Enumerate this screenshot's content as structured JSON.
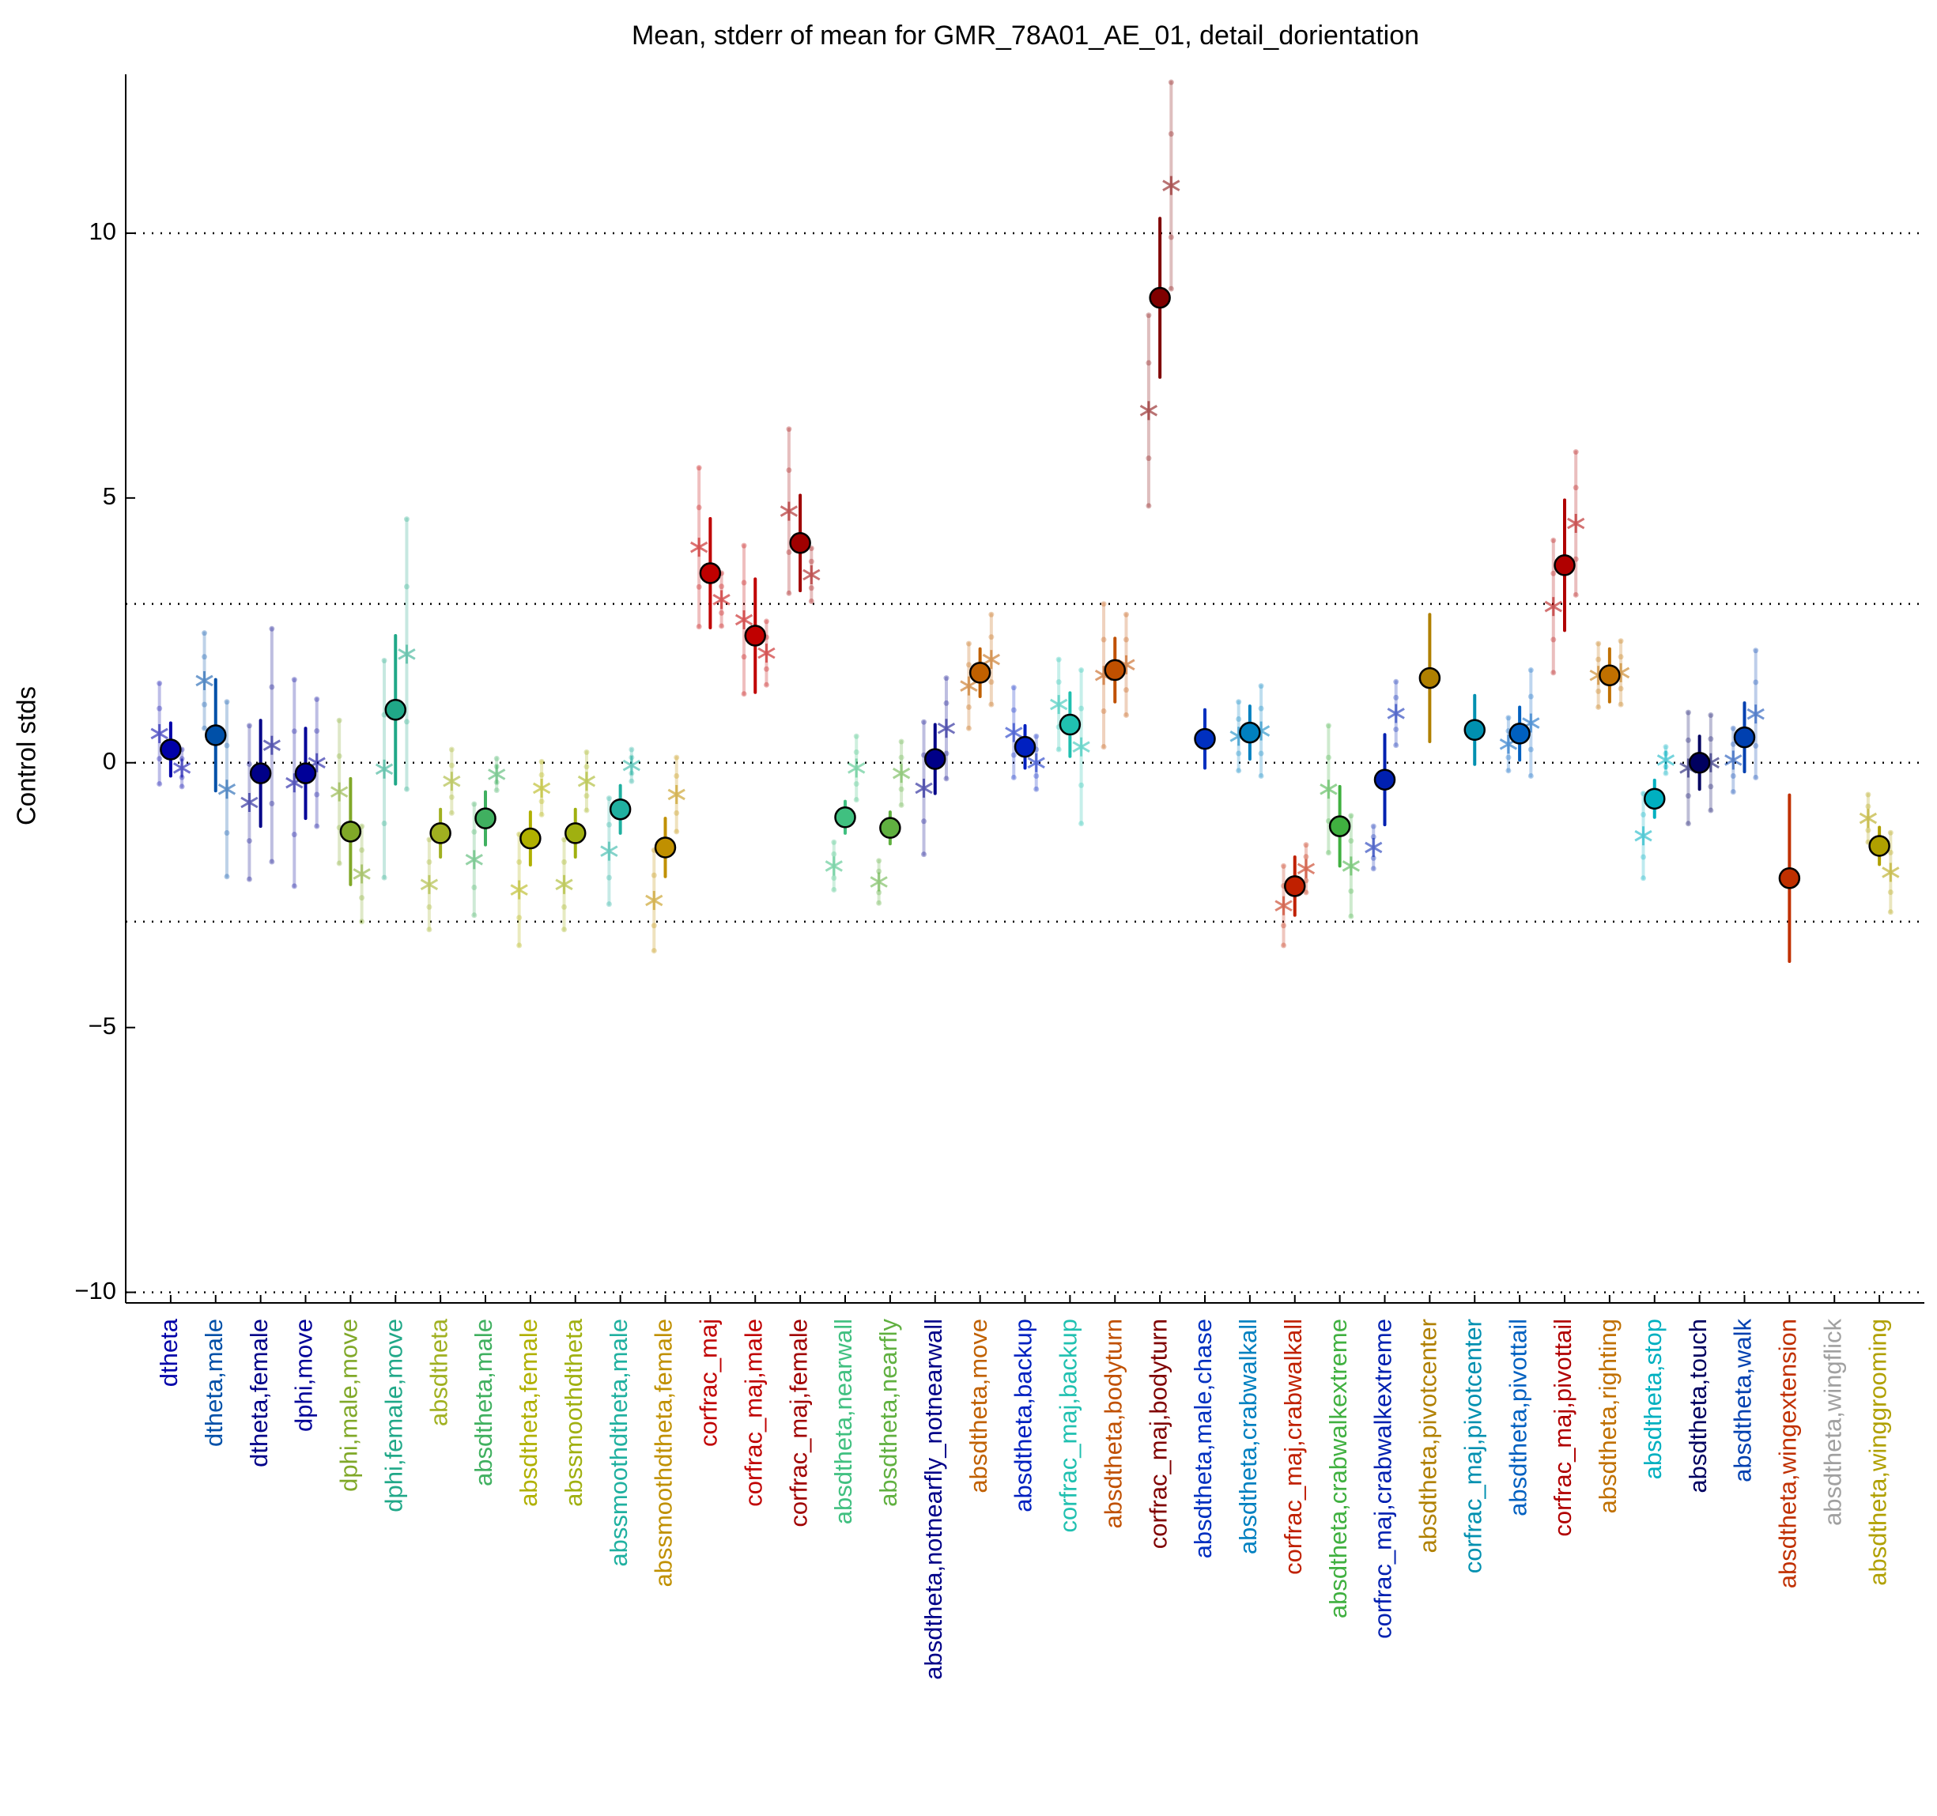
{
  "chart_data": {
    "type": "errorbar",
    "title": "Mean, stderr of mean for GMR_78A01_AE_01, detail_dorientation",
    "ylabel": "Control stds",
    "categories": [
      "dtheta",
      "dtheta,male",
      "dtheta,female",
      "dphi,move",
      "dphi,male,move",
      "dphi,female,move",
      "absdtheta",
      "absdtheta,male",
      "absdtheta,female",
      "abssmoothdtheta",
      "abssmoothdtheta,male",
      "abssmoothdtheta,female",
      "corfrac_maj",
      "corfrac_maj,male",
      "corfrac_maj,female",
      "absdtheta,nearwall",
      "absdtheta,nearfly",
      "absdtheta,notnearfly_notnearwall",
      "absdtheta,move",
      "absdtheta,backup",
      "corfrac_maj,backup",
      "absdtheta,bodyturn",
      "corfrac_maj,bodyturn",
      "absdtheta,male,chase",
      "absdtheta,crabwalkall",
      "corfrac_maj,crabwalkall",
      "absdtheta,crabwalkextreme",
      "corfrac_maj,crabwalkextreme",
      "absdtheta,pivotcenter",
      "corfrac_maj,pivotcenter",
      "absdtheta,pivottail",
      "corfrac_maj,pivottail",
      "absdtheta,righting",
      "absdtheta,stop",
      "absdtheta,touch",
      "absdtheta,walk",
      "absdtheta,wingextension",
      "absdtheta,wingflick",
      "absdtheta,winggrooming"
    ],
    "colors": [
      "#0000a8",
      "#0050a8",
      "#000088",
      "#000098",
      "#80a828",
      "#20a888",
      "#a0b020",
      "#40b060",
      "#b0b000",
      "#a0b010",
      "#20b0a0",
      "#c09000",
      "#c00000",
      "#c00000",
      "#a00000",
      "#40c080",
      "#60b040",
      "#000088",
      "#c06000",
      "#0020c0",
      "#20c0b0",
      "#c05000",
      "#800000",
      "#0030c0",
      "#0080c0",
      "#c02000",
      "#40b040",
      "#0020b0",
      "#b08000",
      "#0090b0",
      "#0060c0",
      "#b00000",
      "#c07000",
      "#00b0c0",
      "#000060",
      "#0040b0",
      "#c03000",
      "#a0a0a0",
      "#b0a000"
    ],
    "series": [
      {
        "marker": "o",
        "values": [
          0.25,
          0.52,
          -0.2,
          -0.2,
          -1.3,
          1.0,
          -1.33,
          -1.05,
          -1.43,
          -1.33,
          -0.88,
          -1.6,
          3.58,
          2.4,
          4.15,
          -1.03,
          -1.23,
          0.07,
          1.7,
          0.3,
          0.72,
          1.75,
          8.78,
          0.45,
          0.57,
          -2.33,
          -1.2,
          -0.32,
          1.6,
          0.62,
          0.55,
          3.73,
          1.65,
          -0.68,
          0.0,
          0.48,
          -2.18,
          null,
          -1.57
        ],
        "errors": [
          0.5,
          1.05,
          1.0,
          0.85,
          1.0,
          1.4,
          0.45,
          0.5,
          0.5,
          0.45,
          0.45,
          0.55,
          1.03,
          1.07,
          0.9,
          0.3,
          0.3,
          0.65,
          0.45,
          0.4,
          0.6,
          0.6,
          1.5,
          0.55,
          0.5,
          0.55,
          0.75,
          0.85,
          1.2,
          0.65,
          0.5,
          1.23,
          0.5,
          0.35,
          0.5,
          0.65,
          1.57,
          null,
          0.35
        ]
      },
      {
        "marker": "*",
        "values": [
          0.55,
          1.55,
          -0.75,
          -0.38,
          -0.55,
          -0.12,
          -2.3,
          -1.83,
          -2.4,
          -2.3,
          -1.67,
          -2.6,
          4.07,
          2.7,
          4.75,
          -1.95,
          -2.25,
          -0.48,
          1.45,
          0.57,
          1.1,
          1.65,
          6.65,
          null,
          0.5,
          -2.7,
          -0.5,
          -1.6,
          null,
          null,
          0.35,
          2.95,
          1.65,
          -1.38,
          -0.1,
          0.05,
          null,
          null,
          -1.05
        ],
        "errors": [
          0.95,
          0.9,
          1.45,
          1.95,
          1.35,
          2.05,
          0.85,
          1.05,
          1.05,
          0.85,
          1.0,
          0.95,
          1.5,
          1.4,
          1.55,
          0.45,
          0.4,
          1.25,
          0.8,
          0.85,
          0.85,
          1.35,
          1.8,
          null,
          0.65,
          0.75,
          1.2,
          0.4,
          null,
          null,
          0.5,
          1.25,
          0.6,
          0.8,
          1.05,
          0.6,
          null,
          null,
          0.45
        ]
      },
      {
        "marker": "*",
        "values": [
          -0.1,
          -0.5,
          0.33,
          0.0,
          -2.1,
          2.05,
          -0.35,
          -0.22,
          -0.48,
          -0.35,
          -0.05,
          -0.6,
          3.08,
          2.07,
          3.55,
          -0.1,
          -0.2,
          0.65,
          1.95,
          0.0,
          0.3,
          1.85,
          10.9,
          null,
          0.6,
          -2.0,
          -1.95,
          0.93,
          null,
          null,
          0.75,
          4.52,
          1.7,
          0.05,
          0.0,
          0.92,
          null,
          null,
          -2.07
        ],
        "errors": [
          0.35,
          1.65,
          2.2,
          1.2,
          0.9,
          2.55,
          0.6,
          0.3,
          0.5,
          0.55,
          0.3,
          0.7,
          0.5,
          0.6,
          0.5,
          0.6,
          0.6,
          0.95,
          0.85,
          0.5,
          1.45,
          0.95,
          1.95,
          null,
          0.85,
          0.45,
          0.95,
          0.6,
          null,
          null,
          1.0,
          1.35,
          0.6,
          0.25,
          0.9,
          1.2,
          null,
          null,
          0.75
        ]
      }
    ],
    "xlim": [
      0,
      40
    ],
    "ylim": [
      -10.2,
      13
    ],
    "yticks": [
      {
        "value": -10,
        "label": "−10"
      },
      {
        "value": -5,
        "label": "−5"
      },
      0,
      5,
      10
    ],
    "grid_lines": [
      -10,
      -3,
      0,
      3,
      10
    ]
  }
}
